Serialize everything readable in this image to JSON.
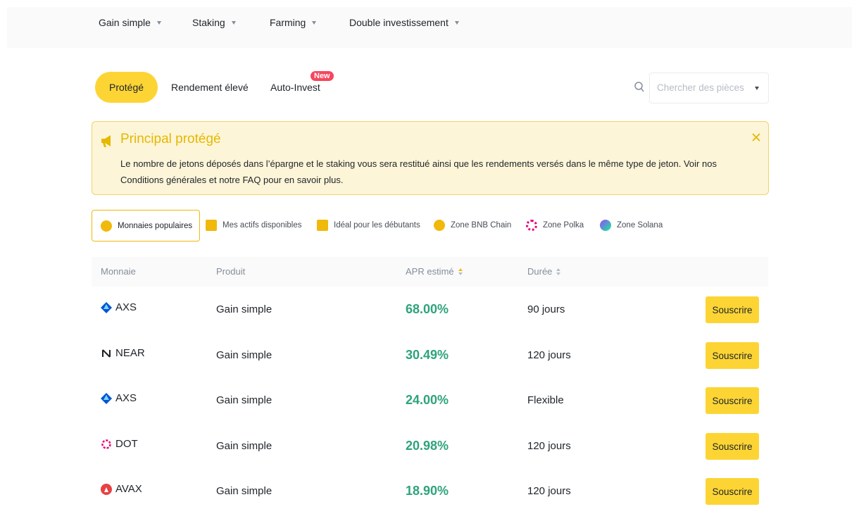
{
  "nav": {
    "items": [
      "Gain simple",
      "Staking",
      "Farming",
      "Double investissement"
    ]
  },
  "tabs": {
    "items": [
      "Protégé",
      "Rendement élevé",
      "Auto-Invest"
    ],
    "badge": "New"
  },
  "search": {
    "placeholder": "Chercher des pièces"
  },
  "banner": {
    "title": "Principal protégé",
    "text": "Le nombre de jetons déposés dans l’épargne et le staking vous sera restitué ainsi que les rendements versés dans le même type de jeton. Voir nos Conditions générales et notre FAQ pour en savoir plus."
  },
  "filters": [
    "Monnaies populaires",
    "Mes actifs disponibles",
    "Idéal pour les débutants",
    "Zone BNB Chain",
    "Zone Polka",
    "Zone Solana"
  ],
  "table": {
    "headers": [
      "Monnaie",
      "Produit",
      "APR estimé",
      "Durée"
    ],
    "rows": [
      [
        "AXS",
        "Gain simple",
        "68.00%",
        "90 jours",
        "Souscrire"
      ],
      [
        "NEAR",
        "Gain simple",
        "30.49%",
        "120 jours",
        "Souscrire"
      ],
      [
        "AXS",
        "Gain simple",
        "24.00%",
        "Flexible",
        "Souscrire"
      ],
      [
        "DOT",
        "Gain simple",
        "20.98%",
        "120 jours",
        "Souscrire"
      ],
      [
        "AVAX",
        "Gain simple",
        "18.90%",
        "120 jours",
        "Souscrire"
      ]
    ]
  }
}
